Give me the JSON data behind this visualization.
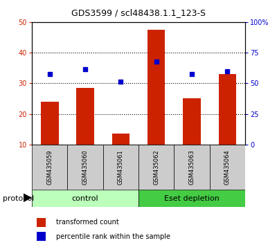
{
  "title": "GDS3599 / scl48438.1.1_123-S",
  "samples": [
    "GSM435059",
    "GSM435060",
    "GSM435061",
    "GSM435062",
    "GSM435063",
    "GSM435064"
  ],
  "red_values": [
    24.0,
    28.5,
    13.5,
    47.5,
    25.0,
    33.0
  ],
  "blue_values_left": [
    33.0,
    34.5,
    30.5,
    37.0,
    33.0,
    34.0
  ],
  "left_ylim": [
    10,
    50
  ],
  "left_yticks": [
    10,
    20,
    30,
    40,
    50
  ],
  "right_ylim": [
    0,
    100
  ],
  "right_yticks": [
    0,
    25,
    50,
    75,
    100
  ],
  "right_yticklabels": [
    "0",
    "25",
    "50",
    "75",
    "100%"
  ],
  "bar_color": "#cc2200",
  "dot_color": "#0000cc",
  "control_color": "#bbffbb",
  "eset_color": "#44cc44",
  "label_bg_color": "#cccccc",
  "protocol_groups": [
    {
      "label": "control",
      "indices": [
        0,
        1,
        2
      ],
      "color": "#bbffbb"
    },
    {
      "label": "Eset depletion",
      "indices": [
        3,
        4,
        5
      ],
      "color": "#44cc44"
    }
  ],
  "legend_red": "transformed count",
  "legend_blue": "percentile rank within the sample",
  "protocol_label": "protocol",
  "bar_width": 0.5,
  "title_fontsize": 9,
  "tick_fontsize": 7,
  "sample_fontsize": 6,
  "proto_fontsize": 8,
  "legend_fontsize": 7
}
